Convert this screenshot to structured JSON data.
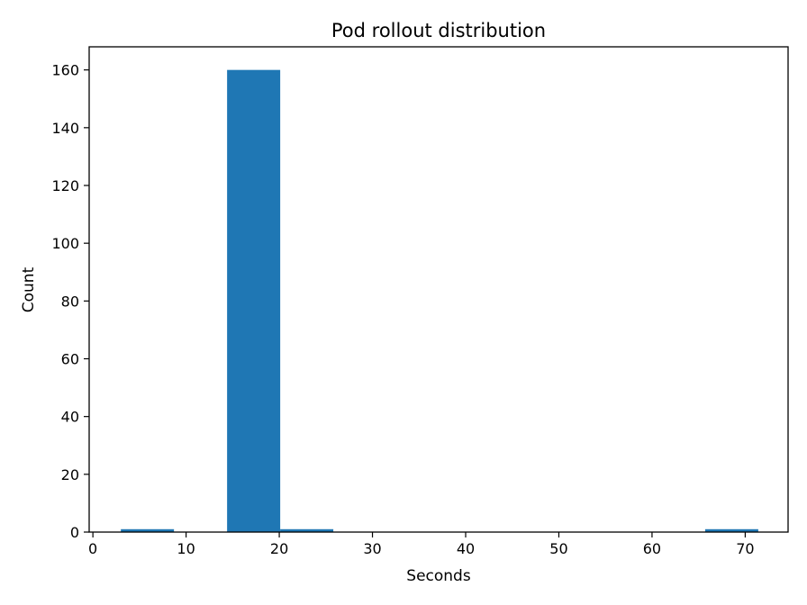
{
  "chart_data": {
    "type": "bar",
    "title": "Pod rollout distribution",
    "xlabel": "Seconds",
    "ylabel": "Count",
    "xlim": [
      -0.4,
      74.6
    ],
    "ylim": [
      0,
      168
    ],
    "xticks": [
      0,
      10,
      20,
      30,
      40,
      50,
      60,
      70
    ],
    "yticks": [
      0,
      20,
      40,
      60,
      80,
      100,
      120,
      140,
      160
    ],
    "grid": false,
    "bar_color": "#1f77b4",
    "bins": [
      {
        "x0": 3.0,
        "x1": 8.7,
        "value": 1
      },
      {
        "x0": 8.7,
        "x1": 14.4,
        "value": 0
      },
      {
        "x0": 14.4,
        "x1": 20.1,
        "value": 160
      },
      {
        "x0": 20.1,
        "x1": 25.8,
        "value": 1
      },
      {
        "x0": 25.8,
        "x1": 31.5,
        "value": 0
      },
      {
        "x0": 31.5,
        "x1": 37.2,
        "value": 0
      },
      {
        "x0": 37.2,
        "x1": 42.9,
        "value": 0
      },
      {
        "x0": 42.9,
        "x1": 48.6,
        "value": 0
      },
      {
        "x0": 48.6,
        "x1": 54.3,
        "value": 0
      },
      {
        "x0": 54.3,
        "x1": 60.0,
        "value": 0
      },
      {
        "x0": 60.0,
        "x1": 65.7,
        "value": 0
      },
      {
        "x0": 65.7,
        "x1": 71.4,
        "value": 1
      }
    ]
  }
}
